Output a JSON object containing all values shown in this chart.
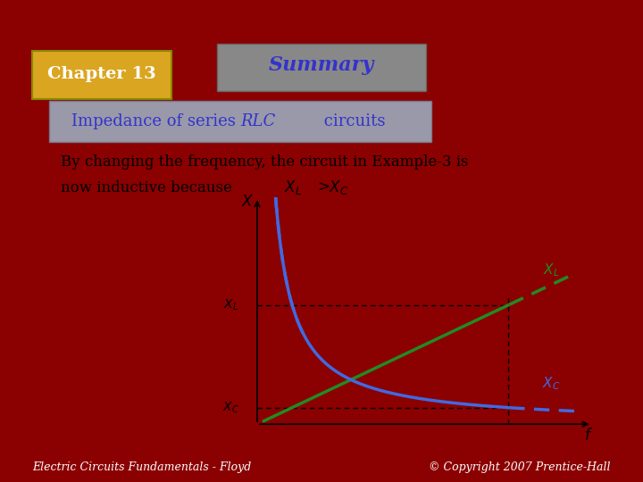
{
  "bg_color": "#c8b89a",
  "outer_bg": "#8b0000",
  "title_text": "Summary",
  "chapter_text": "Chapter 13",
  "subtitle_text": "Impedance of series RLC circuits",
  "body_text1": "By changing the frequency, the circuit in Example-3 is",
  "body_text2": "now inductive because ",
  "body_inline": "X",
  "footer_left": "Electric Circuits Fundamentals - Floyd",
  "footer_right": "© Copyright 2007 Prentice-Hall",
  "xl_label": "X_L",
  "xc_label": "X_C",
  "x_axis_label": "X",
  "f_axis_label": "f",
  "line_color_XL": "#228B22",
  "line_color_XC": "#4169E1",
  "dashed_color": "#555555",
  "annotation_color": "#228B22",
  "annotation_color_xc": "#4169E1"
}
